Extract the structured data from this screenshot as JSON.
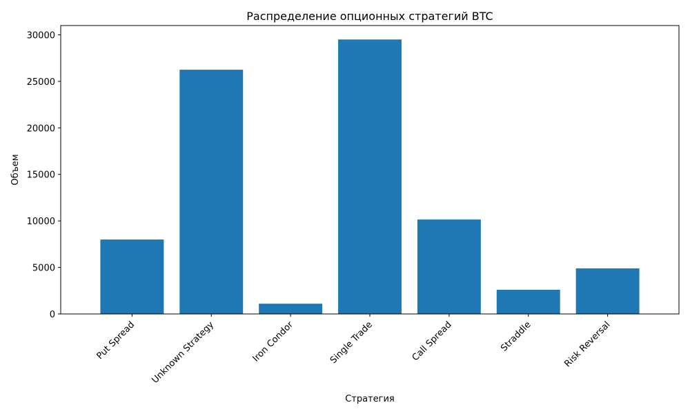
{
  "chart_data": {
    "type": "bar",
    "title": "Распределение опционных стратегий BTC",
    "xlabel": "Стратегия",
    "ylabel": "Объем",
    "categories": [
      "Put Spread",
      "Unknown Strategy",
      "Iron Condor",
      "Single Trade",
      "Call Spread",
      "Straddle",
      "Risk Reversal"
    ],
    "values": [
      8000,
      26250,
      1100,
      29500,
      10150,
      2600,
      4900
    ],
    "ylim": [
      0,
      31000
    ],
    "yticks": [
      0,
      5000,
      10000,
      15000,
      20000,
      25000,
      30000
    ],
    "bar_color": "#1f77b4",
    "grid": false,
    "legend": "none"
  }
}
